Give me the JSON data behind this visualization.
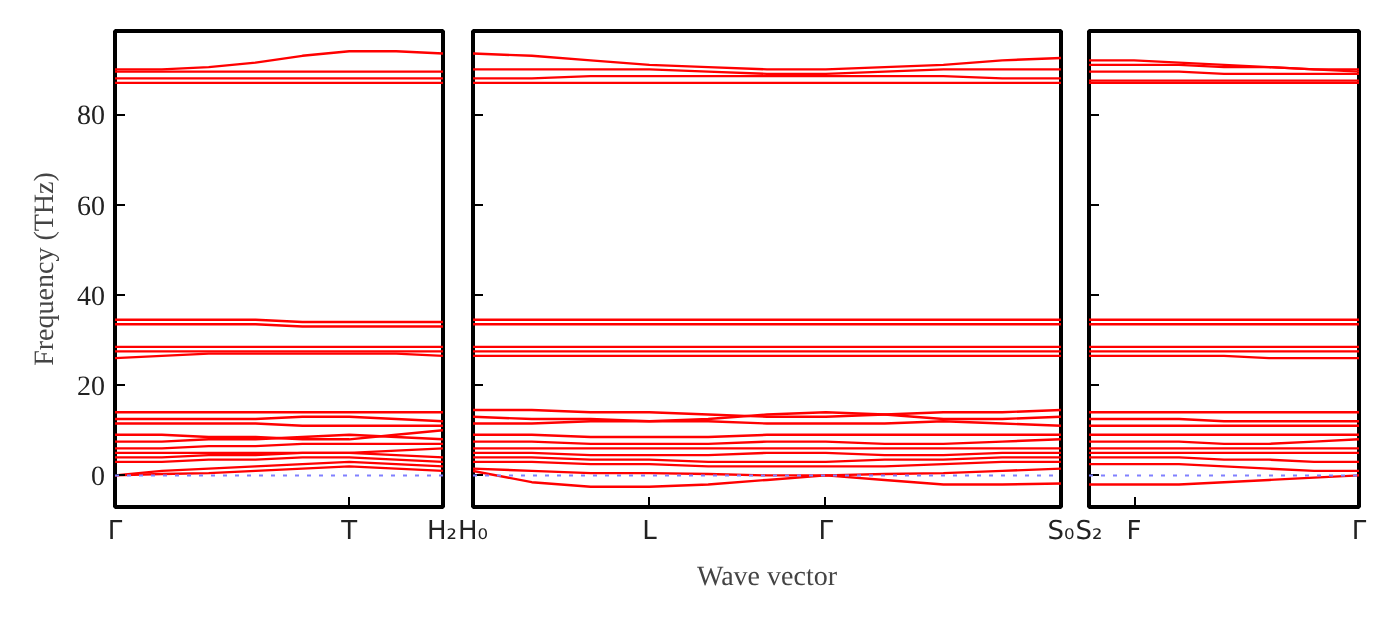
{
  "chart_data": [
    {
      "type": "line",
      "ylabel": "Frequency (THz)",
      "categories": [
        "Γ",
        null,
        null,
        null,
        null,
        "T",
        null,
        "H₂"
      ],
      "ylim": [
        -7,
        98.5
      ],
      "yticks": [
        0,
        20,
        40,
        60,
        80
      ],
      "ref_lines": [
        {
          "axis": "y",
          "value": 0,
          "color": "#8080ff",
          "line_style": "dotted"
        }
      ],
      "series": [
        {
          "color": "#ff0000",
          "values": [
            90,
            90,
            90.5,
            91.5,
            93,
            94,
            94,
            93.5
          ]
        },
        {
          "color": "#ff0000",
          "values": [
            89.5,
            89.5,
            89.5,
            89.5,
            89.5,
            89.5,
            89.5,
            89.5
          ]
        },
        {
          "color": "#ff0000",
          "values": [
            88,
            88,
            88,
            88,
            88,
            88,
            88,
            88
          ]
        },
        {
          "color": "#ff0000",
          "values": [
            87,
            87,
            87,
            87,
            87,
            87,
            87,
            87
          ]
        },
        {
          "color": "#ff0000",
          "values": [
            34.5,
            34.5,
            34.5,
            34.5,
            34,
            34,
            34,
            34
          ]
        },
        {
          "color": "#ff0000",
          "values": [
            33.5,
            33.5,
            33.5,
            33.5,
            33,
            33,
            33,
            33
          ]
        },
        {
          "color": "#ff0000",
          "values": [
            28.5,
            28.5,
            28.5,
            28.5,
            28.5,
            28.5,
            28.5,
            28.5
          ]
        },
        {
          "color": "#ff0000",
          "values": [
            27.5,
            27.5,
            27.5,
            27.5,
            27.5,
            27.5,
            27.5,
            27.5
          ]
        },
        {
          "color": "#ff0000",
          "values": [
            26,
            26.5,
            27,
            27,
            27,
            27,
            27,
            26.5
          ]
        },
        {
          "color": "#ff0000",
          "values": [
            14,
            14,
            14,
            14,
            14,
            14,
            14,
            14
          ]
        },
        {
          "color": "#ff0000",
          "values": [
            12.5,
            12.5,
            12.5,
            12.5,
            13,
            13,
            12.5,
            12
          ]
        },
        {
          "color": "#ff0000",
          "values": [
            11.5,
            11.5,
            11.5,
            11.5,
            11,
            11,
            11,
            11
          ]
        },
        {
          "color": "#ff0000",
          "values": [
            9,
            9,
            8.5,
            8.5,
            8,
            8,
            9,
            10
          ]
        },
        {
          "color": "#ff0000",
          "values": [
            7.5,
            7.5,
            8,
            8,
            8.5,
            9,
            8.5,
            8
          ]
        },
        {
          "color": "#ff0000",
          "values": [
            6,
            6,
            6.5,
            6.5,
            7,
            7,
            7,
            7
          ]
        },
        {
          "color": "#ff0000",
          "values": [
            5,
            5,
            5,
            5,
            5,
            5,
            5.5,
            6
          ]
        },
        {
          "color": "#ff0000",
          "values": [
            4,
            4,
            4.5,
            4.5,
            5,
            5,
            4.5,
            4
          ]
        },
        {
          "color": "#ff0000",
          "values": [
            3,
            3,
            3.5,
            3.5,
            4,
            4,
            3.5,
            3
          ]
        },
        {
          "color": "#ff0000",
          "values": [
            0,
            1,
            1.5,
            2,
            2.5,
            3,
            2.5,
            2
          ]
        },
        {
          "color": "#ff0000",
          "values": [
            0,
            0.3,
            0.5,
            1,
            1.5,
            2,
            1.5,
            1
          ]
        }
      ]
    },
    {
      "type": "line",
      "xlabel": "Wave vector",
      "categories": [
        "H₀",
        null,
        null,
        "L",
        null,
        null,
        "Γ",
        null,
        null,
        null,
        "S₀"
      ],
      "ylim": [
        -7,
        98.5
      ],
      "yticks": [
        0,
        20,
        40,
        60,
        80
      ],
      "tick_labels": "x",
      "ref_lines": [
        {
          "axis": "y",
          "value": 0,
          "color": "#8080ff",
          "line_style": "dotted"
        }
      ],
      "series": [
        {
          "color": "#ff0000",
          "values": [
            93.5,
            93,
            92,
            91,
            90.5,
            90,
            90,
            90.5,
            91,
            92,
            92.5
          ]
        },
        {
          "color": "#ff0000",
          "values": [
            90,
            90,
            90,
            90,
            89.5,
            89,
            89,
            89.5,
            90,
            90,
            90
          ]
        },
        {
          "color": "#ff0000",
          "values": [
            88,
            88,
            88.5,
            88.5,
            88.5,
            88.5,
            88.5,
            88.5,
            88.5,
            88,
            88
          ]
        },
        {
          "color": "#ff0000",
          "values": [
            87,
            87,
            87,
            87,
            87,
            87,
            87,
            87,
            87,
            87,
            87
          ]
        },
        {
          "color": "#ff0000",
          "values": [
            34.5,
            34.5,
            34.5,
            34.5,
            34.5,
            34.5,
            34.5,
            34.5,
            34.5,
            34.5,
            34.5
          ]
        },
        {
          "color": "#ff0000",
          "values": [
            33.5,
            33.5,
            33.5,
            33.5,
            33.5,
            33.5,
            33.5,
            33.5,
            33.5,
            33.5,
            33.5
          ]
        },
        {
          "color": "#ff0000",
          "values": [
            28.5,
            28.5,
            28.5,
            28.5,
            28.5,
            28.5,
            28.5,
            28.5,
            28.5,
            28.5,
            28.5
          ]
        },
        {
          "color": "#ff0000",
          "values": [
            27.5,
            27.5,
            27.5,
            27.5,
            27.5,
            27.5,
            27.5,
            27.5,
            27.5,
            27.5,
            27.5
          ]
        },
        {
          "color": "#ff0000",
          "values": [
            26.5,
            26.5,
            26.5,
            26.5,
            26.5,
            26.5,
            26.5,
            26.5,
            26.5,
            26.5,
            26.5
          ]
        },
        {
          "color": "#ff0000",
          "values": [
            14.5,
            14.5,
            14,
            14,
            13.5,
            13,
            13,
            13.5,
            14,
            14,
            14.5
          ]
        },
        {
          "color": "#ff0000",
          "values": [
            13,
            12.5,
            12.5,
            12,
            12.5,
            13.5,
            14,
            13.5,
            12.5,
            12.5,
            13
          ]
        },
        {
          "color": "#ff0000",
          "values": [
            11.5,
            11.5,
            12,
            12,
            12,
            11.5,
            11.5,
            11.5,
            12,
            11.5,
            11
          ]
        },
        {
          "color": "#ff0000",
          "values": [
            9,
            9,
            8.5,
            8.5,
            8.5,
            9,
            9,
            9,
            9,
            9,
            9
          ]
        },
        {
          "color": "#ff0000",
          "values": [
            7.5,
            7.5,
            7,
            7,
            7,
            7.5,
            7.5,
            7,
            7,
            7.5,
            8
          ]
        },
        {
          "color": "#ff0000",
          "values": [
            6,
            6,
            6,
            6,
            6,
            6,
            6,
            6,
            6,
            6,
            6
          ]
        },
        {
          "color": "#ff0000",
          "values": [
            5,
            5,
            4.5,
            4.5,
            4.5,
            5,
            5,
            4.5,
            4.5,
            5,
            5
          ]
        },
        {
          "color": "#ff0000",
          "values": [
            4,
            4,
            3.5,
            3.5,
            3,
            3,
            3,
            3.5,
            3.5,
            4,
            4
          ]
        },
        {
          "color": "#ff0000",
          "values": [
            3,
            3,
            2.5,
            2.5,
            2,
            2,
            2,
            2,
            2.5,
            3,
            3
          ]
        },
        {
          "color": "#ff0000",
          "values": [
            1.5,
            1,
            0.5,
            0.5,
            0.3,
            0,
            0,
            0.3,
            0.5,
            1,
            1.5
          ]
        },
        {
          "color": "#ff0000",
          "values": [
            1,
            -1.5,
            -2.5,
            -2.5,
            -2,
            -1,
            0,
            -1,
            -2,
            -2,
            -1.8
          ]
        }
      ]
    },
    {
      "type": "line",
      "categories": [
        "S₂",
        "F",
        null,
        null,
        null,
        null,
        "Γ"
      ],
      "ylim": [
        -7,
        98.5
      ],
      "yticks": [
        0,
        20,
        40,
        60,
        80
      ],
      "tick_labels": "x",
      "ref_lines": [
        {
          "axis": "y",
          "value": 0,
          "color": "#8080ff",
          "line_style": "dotted"
        }
      ],
      "series": [
        {
          "color": "#ff0000",
          "values": [
            92,
            92,
            91.5,
            91,
            90.5,
            90,
            89.5
          ]
        },
        {
          "color": "#ff0000",
          "values": [
            91,
            91,
            91,
            90.5,
            90.5,
            90,
            90
          ]
        },
        {
          "color": "#ff0000",
          "values": [
            89.5,
            89.5,
            89.5,
            89,
            89,
            89,
            89
          ]
        },
        {
          "color": "#ff0000",
          "values": [
            87.5,
            87.5,
            87.5,
            87.5,
            87.5,
            87.5,
            87.5
          ]
        },
        {
          "color": "#ff0000",
          "values": [
            87,
            87,
            87,
            87,
            87,
            87,
            87
          ]
        },
        {
          "color": "#ff0000",
          "values": [
            34.5,
            34.5,
            34.5,
            34.5,
            34.5,
            34.5,
            34.5
          ]
        },
        {
          "color": "#ff0000",
          "values": [
            33.5,
            33.5,
            33.5,
            33.5,
            33.5,
            33.5,
            33.5
          ]
        },
        {
          "color": "#ff0000",
          "values": [
            28.5,
            28.5,
            28.5,
            28.5,
            28.5,
            28.5,
            28.5
          ]
        },
        {
          "color": "#ff0000",
          "values": [
            27.5,
            27.5,
            27.5,
            27.5,
            27.5,
            27.5,
            27.5
          ]
        },
        {
          "color": "#ff0000",
          "values": [
            26.5,
            26.5,
            26.5,
            26.5,
            26,
            26,
            26
          ]
        },
        {
          "color": "#ff0000",
          "values": [
            14,
            14,
            14,
            14,
            14,
            14,
            14
          ]
        },
        {
          "color": "#ff0000",
          "values": [
            12.5,
            12.5,
            12.5,
            12,
            12,
            12,
            12
          ]
        },
        {
          "color": "#ff0000",
          "values": [
            11,
            11,
            11,
            11,
            11,
            11,
            11
          ]
        },
        {
          "color": "#ff0000",
          "values": [
            9,
            9,
            9,
            9,
            9,
            9,
            9
          ]
        },
        {
          "color": "#ff0000",
          "values": [
            7.5,
            7.5,
            7.5,
            7,
            7,
            7.5,
            8
          ]
        },
        {
          "color": "#ff0000",
          "values": [
            6,
            6,
            6,
            6,
            6,
            6,
            6
          ]
        },
        {
          "color": "#ff0000",
          "values": [
            5,
            5,
            5,
            5,
            5,
            5,
            5
          ]
        },
        {
          "color": "#ff0000",
          "values": [
            4,
            4,
            4,
            3.5,
            3.5,
            3,
            3
          ]
        },
        {
          "color": "#ff0000",
          "values": [
            2.5,
            2.5,
            2.5,
            2,
            1.5,
            1,
            1
          ]
        },
        {
          "color": "#ff0000",
          "values": [
            -2,
            -2,
            -2,
            -1.5,
            -1,
            -0.5,
            0
          ]
        }
      ]
    }
  ]
}
